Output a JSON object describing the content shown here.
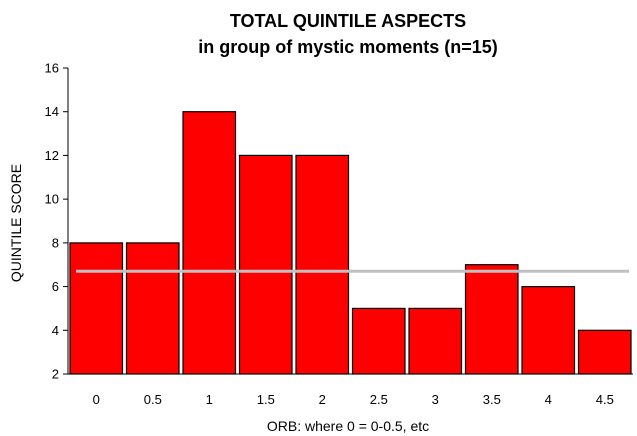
{
  "chart_data": {
    "type": "bar",
    "title": "TOTAL QUINTILE ASPECTS",
    "subtitle": "in group of mystic moments (n=15)",
    "xlabel": "ORB:  where 0 = 0-0.5, etc",
    "ylabel": "QUINTILE SCORE",
    "categories": [
      "0",
      "0.5",
      "1",
      "1.5",
      "2",
      "2.5",
      "3",
      "3.5",
      "4",
      "4.5"
    ],
    "values": [
      8,
      8,
      14,
      12,
      12,
      5,
      5,
      7,
      6,
      4
    ],
    "ylim": [
      2,
      16
    ],
    "yticks": [
      "2",
      "4",
      "6",
      "8",
      "10",
      "12",
      "14",
      "16"
    ],
    "reference_line": 6.7,
    "grid": false,
    "legend": "none",
    "colors": {
      "bar": "#ff0000",
      "bar_edge": "#000000",
      "reference_line": "#c0c0c0"
    }
  }
}
